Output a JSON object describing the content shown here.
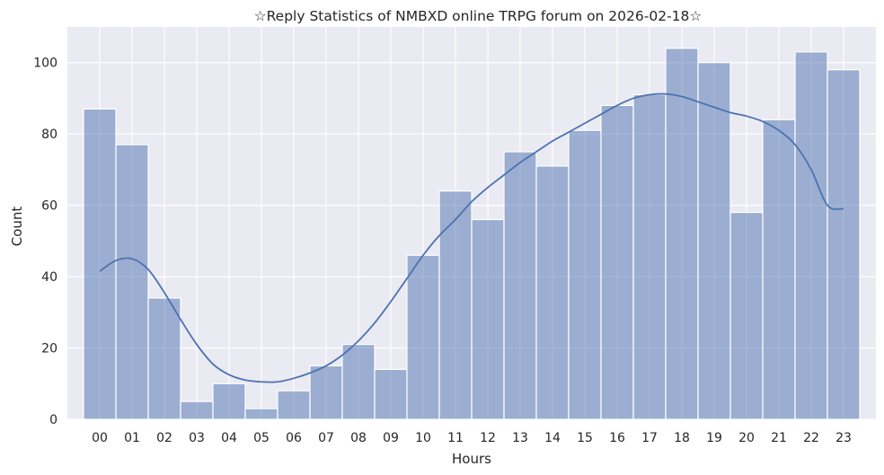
{
  "chart_data": {
    "type": "bar",
    "title": "☆Reply Statistics of NMBXD online TRPG forum on 2026-02-18☆",
    "xlabel": "Hours",
    "ylabel": "Count",
    "categories": [
      "00",
      "01",
      "02",
      "03",
      "04",
      "05",
      "06",
      "07",
      "08",
      "09",
      "10",
      "11",
      "12",
      "13",
      "14",
      "15",
      "16",
      "17",
      "18",
      "19",
      "20",
      "21",
      "22",
      "23"
    ],
    "values": [
      87,
      77,
      34,
      5,
      10,
      3,
      8,
      15,
      21,
      14,
      46,
      64,
      56,
      75,
      71,
      81,
      88,
      91,
      104,
      100,
      58,
      84,
      103,
      98
    ],
    "kde": {
      "x": [
        0,
        0.5,
        1,
        1.5,
        2,
        2.5,
        3,
        3.5,
        4,
        4.5,
        5,
        5.5,
        6,
        6.5,
        7,
        7.5,
        8,
        8.5,
        9,
        9.5,
        10,
        10.5,
        11,
        11.5,
        12,
        12.5,
        13,
        13.5,
        14,
        14.5,
        15,
        15.5,
        16,
        16.5,
        17,
        17.5,
        18,
        18.5,
        19,
        19.5,
        20,
        20.5,
        21,
        21.5,
        22,
        22.5,
        23
      ],
      "y": [
        41.5,
        44.5,
        45,
        42,
        35.5,
        28,
        21,
        15.5,
        12.5,
        11,
        10.5,
        10.5,
        11.5,
        13,
        15,
        18,
        22,
        27,
        33,
        39.5,
        46,
        51.5,
        56,
        61,
        65,
        68.5,
        72,
        75,
        78,
        80.5,
        83,
        85.5,
        88,
        90,
        91,
        91.2,
        90.5,
        89,
        87.5,
        86,
        85,
        83.5,
        81,
        77,
        70,
        60,
        59
      ]
    },
    "yticks": [
      0,
      20,
      40,
      60,
      80,
      100
    ],
    "ylim": [
      0,
      110
    ],
    "xlim": [
      -1,
      24
    ],
    "grid": true,
    "colors": {
      "background": "#eaeaf2",
      "grid": "#ffffff",
      "bar_fill": "#4c72b0",
      "bar_opacity": 0.5,
      "bar_edge": "#ffffff",
      "kde_line": "#4c72b0"
    }
  }
}
